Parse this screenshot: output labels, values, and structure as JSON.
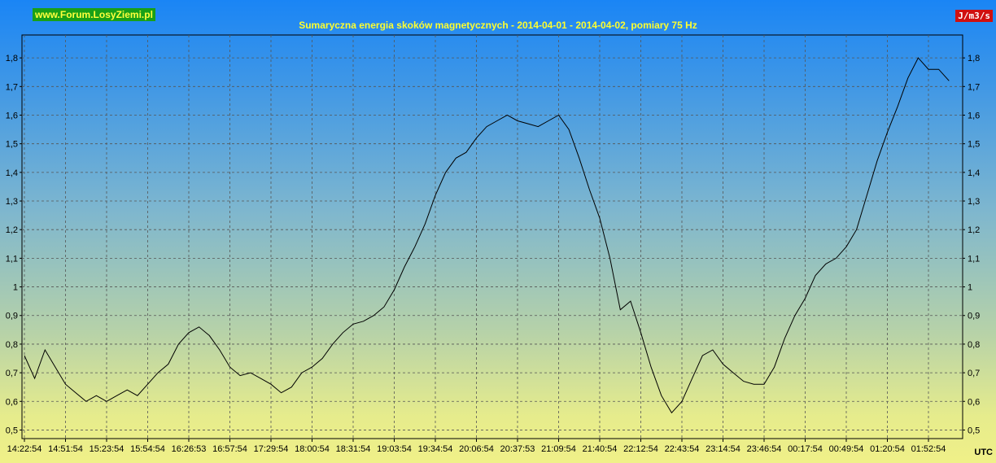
{
  "header": {
    "forum": "www.Forum.LosyZiemi.pl",
    "title": "Sumaryczna energia skoków magnetycznych - 2014-04-01 - 2014-04-02, pomiary 75 Hz",
    "unit": "J/m3/s",
    "timezone": "UTC"
  },
  "colors": {
    "gradient_top": "#1a85f5",
    "gradient_bottom": "#f0f088",
    "line": "#000000",
    "title": "#ffff2e",
    "forum_bg": "#18a018",
    "unit_bg": "#d01010"
  },
  "chart_data": {
    "type": "line",
    "title": "Sumaryczna energia skoków magnetycznych - 2014-04-01 - 2014-04-02, pomiary 75 Hz",
    "ylabel": "J/m3/s",
    "xlabel": "UTC",
    "ylim": [
      0.47,
      1.88
    ],
    "yticks": [
      "0,5",
      "0,6",
      "0,7",
      "0,8",
      "0,9",
      "1",
      "1,1",
      "1,2",
      "1,3",
      "1,4",
      "1,5",
      "1,6",
      "1,7",
      "1,8"
    ],
    "xticks": [
      "14:22:54",
      "14:51:54",
      "15:23:54",
      "15:54:54",
      "16:26:53",
      "16:57:54",
      "17:29:54",
      "18:00:54",
      "18:31:54",
      "19:03:54",
      "19:34:54",
      "20:06:54",
      "20:37:53",
      "21:09:54",
      "21:40:54",
      "22:12:54",
      "22:43:54",
      "23:14:54",
      "23:46:54",
      "00:17:54",
      "00:49:54",
      "01:20:54",
      "01:52:54"
    ],
    "grid": true,
    "series": [
      {
        "values": [
          [
            0.0,
            0.76
          ],
          [
            0.25,
            0.68
          ],
          [
            0.5,
            0.78
          ],
          [
            0.75,
            0.72
          ],
          [
            1.0,
            0.66
          ],
          [
            1.25,
            0.63
          ],
          [
            1.5,
            0.6
          ],
          [
            1.75,
            0.62
          ],
          [
            2.0,
            0.6
          ],
          [
            2.25,
            0.62
          ],
          [
            2.5,
            0.64
          ],
          [
            2.75,
            0.62
          ],
          [
            3.0,
            0.66
          ],
          [
            3.25,
            0.7
          ],
          [
            3.5,
            0.73
          ],
          [
            3.75,
            0.8
          ],
          [
            4.0,
            0.84
          ],
          [
            4.25,
            0.86
          ],
          [
            4.5,
            0.83
          ],
          [
            4.75,
            0.78
          ],
          [
            5.0,
            0.72
          ],
          [
            5.25,
            0.69
          ],
          [
            5.5,
            0.7
          ],
          [
            5.75,
            0.68
          ],
          [
            6.0,
            0.66
          ],
          [
            6.25,
            0.63
          ],
          [
            6.5,
            0.65
          ],
          [
            6.75,
            0.7
          ],
          [
            7.0,
            0.72
          ],
          [
            7.25,
            0.75
          ],
          [
            7.5,
            0.8
          ],
          [
            7.75,
            0.84
          ],
          [
            8.0,
            0.87
          ],
          [
            8.25,
            0.88
          ],
          [
            8.5,
            0.9
          ],
          [
            8.75,
            0.93
          ],
          [
            9.0,
            0.99
          ],
          [
            9.25,
            1.07
          ],
          [
            9.5,
            1.14
          ],
          [
            9.75,
            1.22
          ],
          [
            10.0,
            1.32
          ],
          [
            10.25,
            1.4
          ],
          [
            10.5,
            1.45
          ],
          [
            10.75,
            1.47
          ],
          [
            11.0,
            1.52
          ],
          [
            11.25,
            1.56
          ],
          [
            11.5,
            1.58
          ],
          [
            11.75,
            1.6
          ],
          [
            12.0,
            1.58
          ],
          [
            12.25,
            1.57
          ],
          [
            12.5,
            1.56
          ],
          [
            12.75,
            1.58
          ],
          [
            13.0,
            1.6
          ],
          [
            13.25,
            1.55
          ],
          [
            13.5,
            1.45
          ],
          [
            13.75,
            1.34
          ],
          [
            14.0,
            1.24
          ],
          [
            14.25,
            1.1
          ],
          [
            14.5,
            0.92
          ],
          [
            14.75,
            0.95
          ],
          [
            15.0,
            0.84
          ],
          [
            15.25,
            0.72
          ],
          [
            15.5,
            0.62
          ],
          [
            15.75,
            0.56
          ],
          [
            16.0,
            0.6
          ],
          [
            16.25,
            0.68
          ],
          [
            16.5,
            0.76
          ],
          [
            16.75,
            0.78
          ],
          [
            17.0,
            0.73
          ],
          [
            17.25,
            0.7
          ],
          [
            17.5,
            0.67
          ],
          [
            17.75,
            0.66
          ],
          [
            18.0,
            0.66
          ],
          [
            18.25,
            0.72
          ],
          [
            18.5,
            0.82
          ],
          [
            18.75,
            0.9
          ],
          [
            19.0,
            0.96
          ],
          [
            19.25,
            1.04
          ],
          [
            19.5,
            1.08
          ],
          [
            19.75,
            1.1
          ],
          [
            20.0,
            1.14
          ],
          [
            20.25,
            1.2
          ],
          [
            20.5,
            1.32
          ],
          [
            20.75,
            1.44
          ],
          [
            21.0,
            1.54
          ],
          [
            21.25,
            1.63
          ],
          [
            21.5,
            1.73
          ],
          [
            21.75,
            1.8
          ],
          [
            22.0,
            1.76
          ],
          [
            22.25,
            1.76
          ],
          [
            22.5,
            1.72
          ]
        ]
      }
    ]
  }
}
